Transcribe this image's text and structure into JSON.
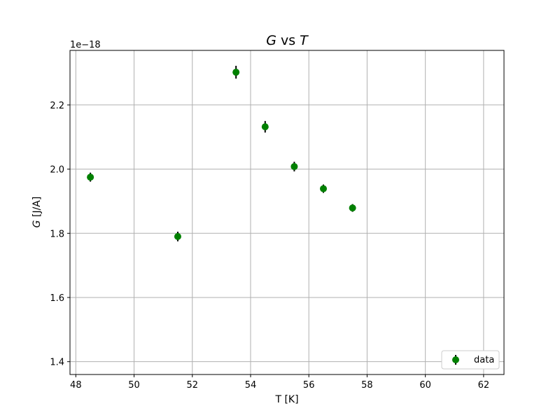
{
  "chart_data": {
    "type": "scatter",
    "title_parts": [
      "G",
      " vs ",
      "T"
    ],
    "xlabel": "T [K]",
    "ylabel_symbol": "G",
    "ylabel_unit": " [J/A]",
    "y_offset_text": "1e−18",
    "xlim": [
      47.8,
      62.7
    ],
    "ylim": [
      1.36,
      2.37
    ],
    "xticks": [
      48,
      50,
      52,
      54,
      56,
      58,
      60,
      62
    ],
    "yticks": [
      1.4,
      1.6,
      1.8,
      2.0,
      2.2
    ],
    "ytick_labels": [
      "1.4",
      "1.6",
      "1.8",
      "2.0",
      "2.2"
    ],
    "grid": true,
    "legend_position": "lower-right",
    "series": [
      {
        "name": "data",
        "color": "#008000",
        "x": [
          48.5,
          51.5,
          53.5,
          54.5,
          55.5,
          56.5,
          57.5
        ],
        "y": [
          1.975,
          1.79,
          2.302,
          2.132,
          2.008,
          1.939,
          1.879
        ],
        "yerr": [
          0.014,
          0.015,
          0.02,
          0.018,
          0.015,
          0.013,
          0.012
        ]
      }
    ]
  }
}
